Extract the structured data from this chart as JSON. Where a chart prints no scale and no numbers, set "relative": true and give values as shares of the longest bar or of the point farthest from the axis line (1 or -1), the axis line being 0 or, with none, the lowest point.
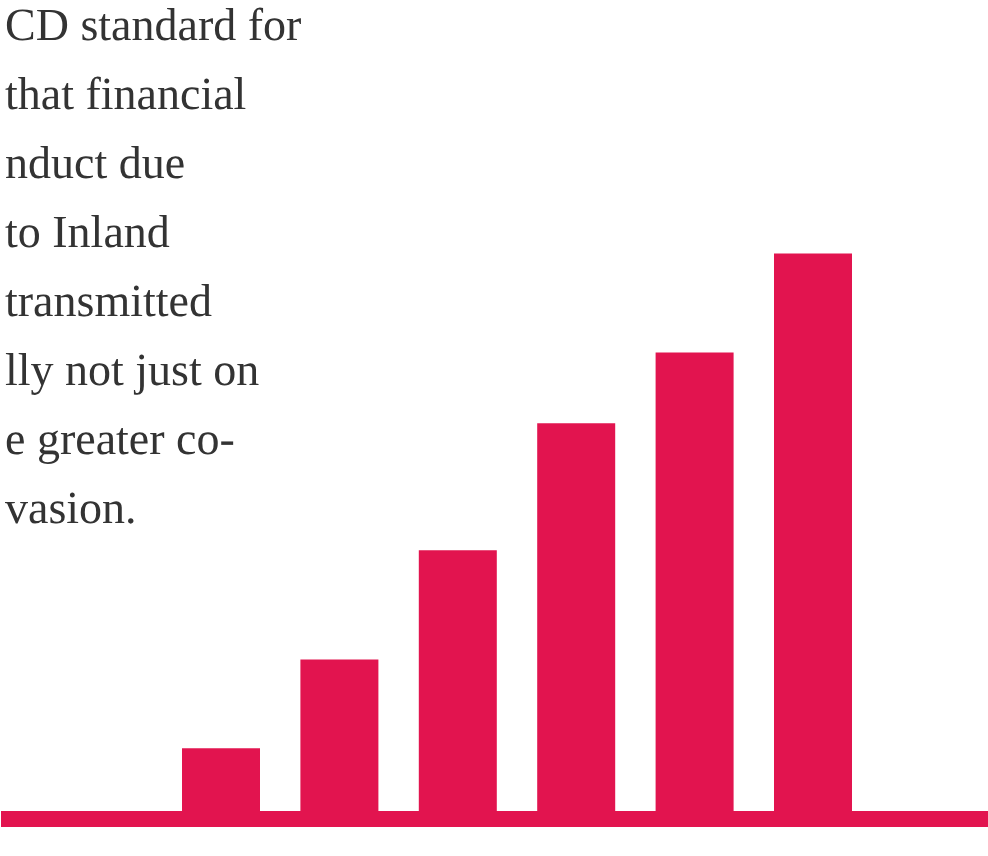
{
  "chart_data": {
    "type": "bar",
    "relative": true,
    "color": "#e2144f",
    "categories": [
      null,
      null,
      null,
      null,
      null,
      null
    ],
    "values": [
      0.125,
      0.282,
      0.475,
      0.7,
      0.825,
      1
    ],
    "annotations": [
      "CD standard for",
      "that financial",
      "nduct due",
      "to Inland",
      "transmitted",
      "lly not just on",
      "e greater co-",
      "vasion."
    ]
  }
}
